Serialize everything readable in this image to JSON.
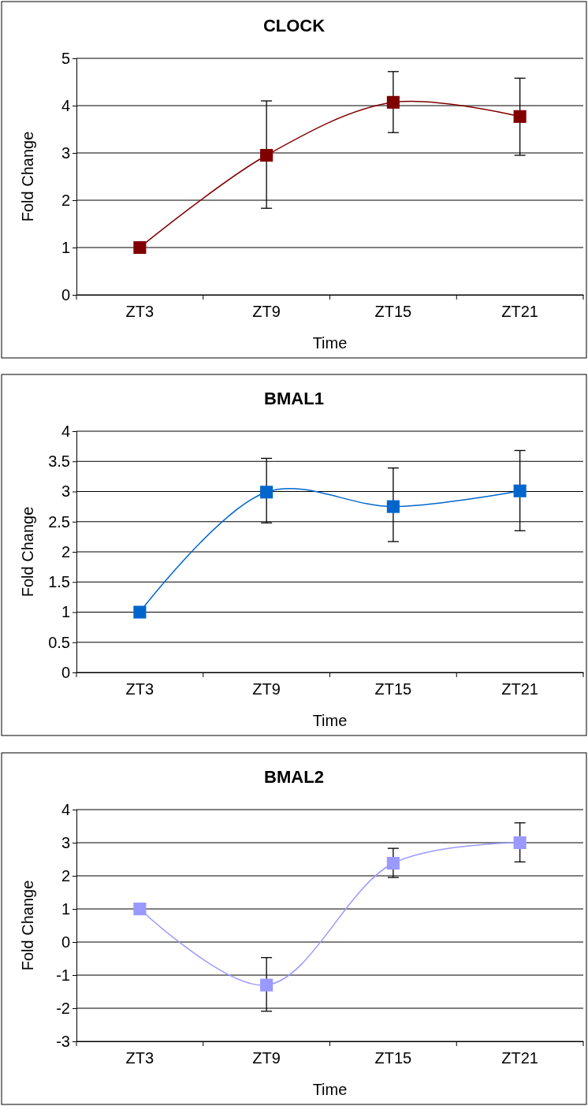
{
  "chart_data": [
    {
      "type": "line",
      "title": "CLOCK",
      "xlabel": "Time",
      "ylabel": "Fold Change",
      "categories": [
        "ZT3",
        "ZT9",
        "ZT15",
        "ZT21"
      ],
      "series": [
        {
          "color": "#800000",
          "values": [
            1,
            2.95,
            4.07,
            3.77
          ],
          "errors": [
            null,
            [
              1.83,
              4.1
            ],
            [
              3.43,
              4.72
            ],
            [
              2.95,
              4.58
            ]
          ]
        }
      ],
      "ylim": [
        0,
        5
      ],
      "yticks": [
        0,
        1,
        2,
        3,
        4,
        5
      ],
      "grid": "y",
      "marker": "square",
      "line_style": "solid"
    },
    {
      "type": "line",
      "title": "BMAL1",
      "xlabel": "Time",
      "ylabel": "Fold Change",
      "categories": [
        "ZT3",
        "ZT9",
        "ZT15",
        "ZT21"
      ],
      "series": [
        {
          "color": "#0066cc",
          "values": [
            1,
            2.99,
            2.75,
            3.01
          ],
          "errors": [
            null,
            [
              2.48,
              3.55
            ],
            [
              2.17,
              3.39
            ],
            [
              2.35,
              3.68
            ]
          ]
        }
      ],
      "ylim": [
        0,
        4
      ],
      "yticks": [
        0,
        0.5,
        1,
        1.5,
        2,
        2.5,
        3,
        3.5,
        4
      ],
      "grid": "y",
      "marker": "square",
      "line_style": "solid"
    },
    {
      "type": "line",
      "title": "BMAL2",
      "xlabel": "Time",
      "ylabel": "Fold Change",
      "categories": [
        "ZT3",
        "ZT9",
        "ZT15",
        "ZT21"
      ],
      "series": [
        {
          "color": "#9999ff",
          "values": [
            1,
            -1.3,
            2.38,
            3.0
          ],
          "errors": [
            null,
            [
              -2.09,
              -0.47
            ],
            [
              1.95,
              2.83
            ],
            [
              2.42,
              3.6
            ]
          ]
        }
      ],
      "ylim": [
        -3,
        4
      ],
      "yticks": [
        -3,
        -2,
        -1,
        0,
        1,
        2,
        3,
        4
      ],
      "grid": "y",
      "marker": "square",
      "line_style": "solid"
    }
  ]
}
